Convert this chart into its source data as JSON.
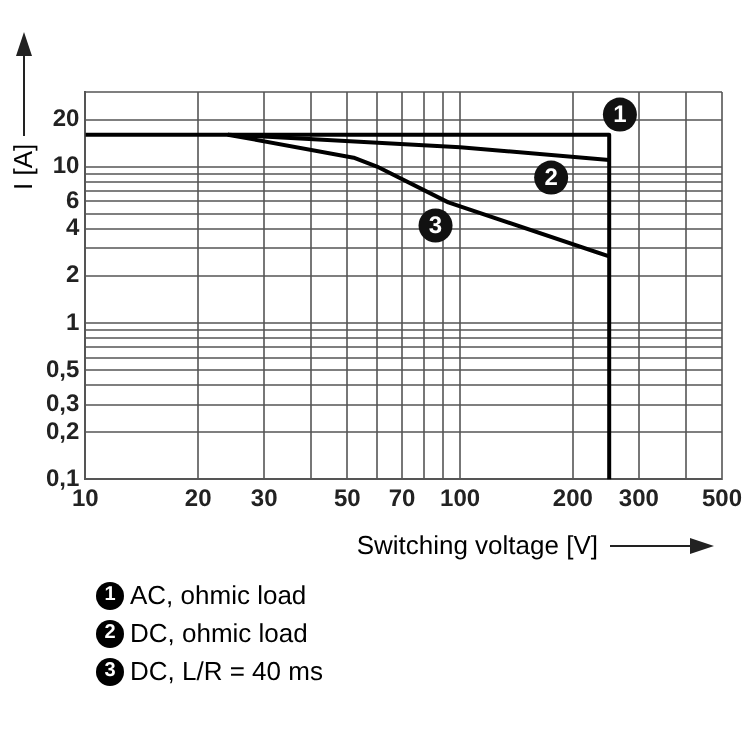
{
  "chart_data": {
    "type": "line",
    "xlabel": "Switching voltage [V]",
    "ylabel": "I [A]",
    "log": "xy",
    "grid": true,
    "legend": "bottom",
    "marker": "none",
    "line_style": "solid",
    "xlim": [
      10,
      500
    ],
    "ylim": [
      0.1,
      30
    ],
    "xticks": [
      10,
      20,
      30,
      {
        "value": 40,
        "label": null
      },
      50,
      {
        "value": 60,
        "label": null
      },
      70,
      {
        "value": 80,
        "label": null
      },
      {
        "value": 90,
        "label": null
      },
      100,
      200,
      300,
      {
        "value": 400,
        "label": null
      },
      500
    ],
    "yticks": [
      {
        "value": 0.1,
        "label": "0,1"
      },
      {
        "value": 0.2,
        "label": "0,2"
      },
      {
        "value": 0.3,
        "label": "0,3"
      },
      {
        "value": 0.4,
        "label": null
      },
      {
        "value": 0.5,
        "label": "0,5"
      },
      {
        "value": 0.6,
        "label": null
      },
      {
        "value": 0.7,
        "label": null
      },
      {
        "value": 0.8,
        "label": null
      },
      {
        "value": 0.9,
        "label": null
      },
      1,
      2,
      {
        "value": 3,
        "label": null
      },
      4,
      {
        "value": 5,
        "label": null
      },
      6,
      {
        "value": 7,
        "label": null
      },
      {
        "value": 8,
        "label": null
      },
      {
        "value": 9,
        "label": null
      },
      10,
      20,
      {
        "value": 30,
        "label": null
      }
    ],
    "series": [
      {
        "name": "AC, ohmic load",
        "color": "#000000",
        "x": [
          10,
          250,
          250
        ],
        "values": [
          16,
          16,
          0.1
        ]
      },
      {
        "name": "DC, ohmic load",
        "color": "#000000",
        "x": [
          24,
          100,
          250
        ],
        "values": [
          16,
          13.3,
          11
        ]
      },
      {
        "name": "DC, L/R = 40 ms",
        "color": "#000000",
        "x": [
          24,
          52,
          60,
          93,
          250
        ],
        "values": [
          16,
          11.4,
          10,
          5.9,
          2.66
        ]
      }
    ],
    "annotations": [
      {
        "text": "1",
        "x": 267,
        "y": 21.5
      },
      {
        "text": "2",
        "x": 175,
        "y": 8.5
      },
      {
        "text": "3",
        "x": 86,
        "y": 4.2
      }
    ]
  }
}
